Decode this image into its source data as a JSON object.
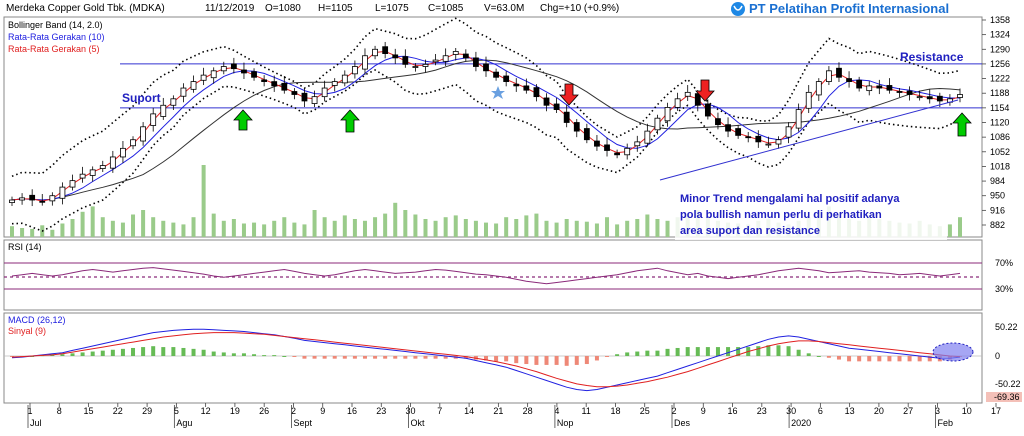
{
  "header": {
    "ticker": "Merdeka Copper Gold Tbk. (MDKA)",
    "date": "11/12/2019",
    "open": "O=1080",
    "high": "H=1105",
    "low": "L=1075",
    "close": "C=1085",
    "volume": "V=63.0M",
    "change": "Chg=+10 (+0.9%)"
  },
  "brand": {
    "name": "PT Pelatihan Profit Internasional"
  },
  "legend": {
    "bollinger": "Bollinger Band (14, 2.0)",
    "ma10": "Rata-Rata Gerakan (10)",
    "ma5": "Rata-Rata Gerakan (5)"
  },
  "annotations": {
    "support": "Suport",
    "resistance": "Resistance",
    "note": [
      "Minor Trend mengalami hal positif adanya",
      "pola bullish namun perlu di perhatikan",
      "area suport dan resistance"
    ]
  },
  "rsi": {
    "label": "RSI (14)",
    "upper": "70%",
    "lower": "30%"
  },
  "macd": {
    "label": "MACD (26,12)",
    "signal": "Sinyal (9)",
    "top": "50.22",
    "zero": "0",
    "bottom": "-50.22",
    "min": "-69.36"
  },
  "colors": {
    "up": "#ffffff",
    "down": "#000000",
    "bbands": "#000000",
    "ma10": "#2020e0",
    "ma5": "#e02020",
    "volume": "#9acb8a",
    "macd": "#2020e0",
    "signal": "#e02020",
    "hist_up": "#66bb55",
    "hist_down": "#ee8877",
    "rsi": "#8b2a7a",
    "support_line": "#3030d0"
  },
  "chart_data": {
    "type": "candlestick",
    "price_axis_ticks": [
      1358,
      1324,
      1290,
      1256,
      1222,
      1188,
      1154,
      1120,
      1086,
      1052,
      1018,
      984,
      950,
      916,
      882
    ],
    "support_level": 1154,
    "resistance_level": 1256,
    "x_tick_labels": [
      "1",
      "8",
      "15",
      "22",
      "29",
      "5",
      "12",
      "19",
      "26",
      "2",
      "9",
      "16",
      "23",
      "30",
      "7",
      "14",
      "21",
      "28",
      "4",
      "11",
      "18",
      "25",
      "2",
      "9",
      "16",
      "23",
      "30",
      "6",
      "13",
      "20",
      "27",
      "3",
      "10",
      "17"
    ],
    "month_labels": [
      "Jul",
      "Agu",
      "Sept",
      "Okt",
      "Nop",
      "Des",
      "2020",
      "Feb"
    ],
    "close_path": [
      940,
      945,
      940,
      935,
      950,
      970,
      985,
      1000,
      1010,
      1020,
      1040,
      1060,
      1080,
      1110,
      1140,
      1160,
      1175,
      1200,
      1215,
      1230,
      1240,
      1250,
      1245,
      1235,
      1225,
      1215,
      1205,
      1195,
      1185,
      1170,
      1180,
      1200,
      1215,
      1230,
      1250,
      1275,
      1290,
      1280,
      1270,
      1255,
      1250,
      1255,
      1265,
      1275,
      1285,
      1270,
      1250,
      1240,
      1225,
      1215,
      1205,
      1195,
      1180,
      1160,
      1150,
      1120,
      1100,
      1080,
      1065,
      1055,
      1045,
      1060,
      1075,
      1100,
      1130,
      1155,
      1175,
      1190,
      1160,
      1135,
      1115,
      1100,
      1090,
      1085,
      1075,
      1070,
      1080,
      1110,
      1150,
      1190,
      1215,
      1240,
      1225,
      1215,
      1200,
      1205,
      1200,
      1195,
      1190,
      1185,
      1180,
      1175,
      1170,
      1175,
      1185
    ],
    "volume_pct": [
      12,
      10,
      9,
      13,
      8,
      15,
      20,
      28,
      34,
      22,
      18,
      16,
      25,
      30,
      22,
      18,
      16,
      14,
      22,
      80,
      26,
      18,
      20,
      15,
      16,
      14,
      18,
      22,
      16,
      14,
      30,
      22,
      18,
      24,
      20,
      18,
      22,
      26,
      38,
      30,
      25,
      20,
      18,
      22,
      24,
      20,
      18,
      16,
      15,
      22,
      20,
      24,
      26,
      18,
      16,
      20,
      18,
      17,
      15,
      22,
      14,
      18,
      20,
      25,
      20,
      18,
      22,
      26,
      30,
      22,
      18,
      16,
      15,
      14,
      18,
      20,
      16,
      14,
      18,
      22,
      28,
      34,
      22,
      20,
      18,
      24,
      20,
      18,
      16,
      15,
      18,
      14,
      12,
      14,
      22
    ],
    "rsi_path": [
      50,
      52,
      54,
      52,
      50,
      52,
      55,
      58,
      60,
      58,
      56,
      58,
      60,
      62,
      63,
      61,
      59,
      57,
      55,
      53,
      50,
      48,
      50,
      52,
      54,
      56,
      58,
      60,
      57,
      54,
      52,
      50,
      52,
      55,
      58,
      60,
      58,
      56,
      54,
      55,
      56,
      58,
      60,
      59,
      57,
      55,
      53,
      52,
      50,
      48,
      45,
      42,
      40,
      38,
      40,
      42,
      44,
      46,
      48,
      50,
      52,
      55,
      58,
      60,
      62,
      58,
      55,
      52,
      54,
      50,
      48,
      46,
      48,
      50,
      52,
      55,
      58,
      60,
      62,
      60,
      58,
      55,
      56,
      57,
      58,
      56,
      55,
      54,
      52,
      53,
      54,
      52,
      50,
      52,
      54
    ],
    "macd_path": [
      -3,
      -2,
      0,
      2,
      4,
      6,
      10,
      14,
      18,
      22,
      26,
      30,
      34,
      38,
      42,
      44,
      46,
      47,
      48,
      48,
      47,
      46,
      45,
      44,
      42,
      40,
      38,
      35,
      32,
      28,
      26,
      24,
      22,
      20,
      18,
      16,
      14,
      12,
      10,
      8,
      6,
      4,
      2,
      0,
      -2,
      -4,
      -8,
      -12,
      -16,
      -20,
      -26,
      -32,
      -38,
      -44,
      -50,
      -56,
      -60,
      -62,
      -60,
      -56,
      -52,
      -48,
      -44,
      -40,
      -36,
      -30,
      -24,
      -18,
      -12,
      -6,
      0,
      6,
      12,
      18,
      24,
      30,
      34,
      36,
      34,
      30,
      26,
      22,
      18,
      14,
      12,
      10,
      8,
      6,
      4,
      2,
      0,
      -2,
      -4,
      -4,
      -2
    ],
    "signal_path": [
      -2,
      -1,
      0,
      1,
      2,
      4,
      7,
      10,
      13,
      16,
      19,
      22,
      25,
      28,
      31,
      34,
      36,
      38,
      40,
      41,
      42,
      42,
      42,
      41,
      40,
      39,
      37,
      35,
      33,
      31,
      29,
      27,
      25,
      23,
      21,
      19,
      17,
      15,
      13,
      11,
      9,
      7,
      5,
      3,
      1,
      -1,
      -4,
      -7,
      -10,
      -14,
      -18,
      -23,
      -28,
      -34,
      -40,
      -45,
      -50,
      -53,
      -55,
      -55,
      -54,
      -52,
      -49,
      -46,
      -42,
      -38,
      -33,
      -28,
      -22,
      -16,
      -10,
      -4,
      2,
      8,
      13,
      18,
      22,
      25,
      27,
      27,
      26,
      24,
      22,
      20,
      18,
      16,
      14,
      12,
      10,
      8,
      6,
      4,
      2,
      0,
      -1
    ]
  }
}
